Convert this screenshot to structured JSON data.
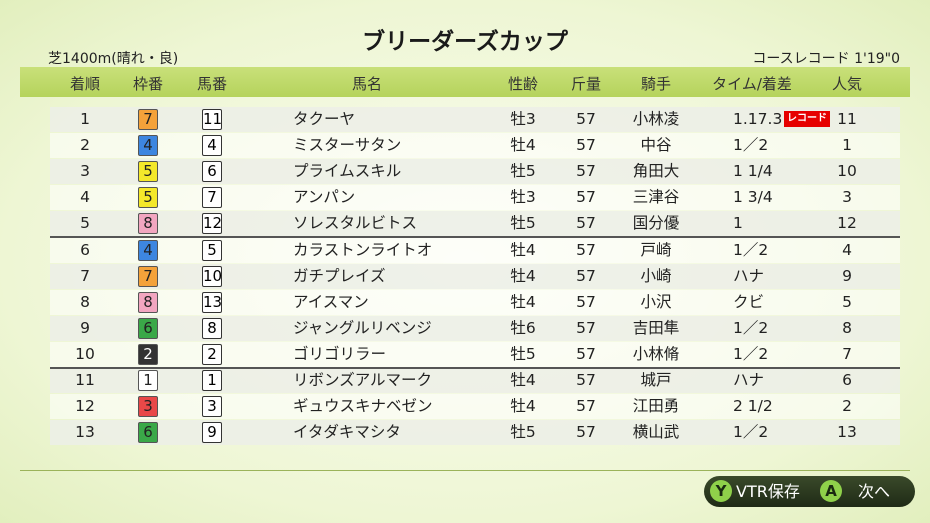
{
  "header": {
    "title": "ブリーダーズカップ",
    "course": "芝1400m(晴れ・良)",
    "record": "コースレコード 1'19\"0"
  },
  "table": {
    "columns": [
      "着順",
      "枠番",
      "馬番",
      "馬名",
      "性齢",
      "斤量",
      "騎手",
      "タイム/着差",
      "人気"
    ],
    "rows": [
      {
        "rank": "1",
        "frame": "7",
        "number": "11",
        "name": "タクーヤ",
        "sex_age": "牡3",
        "weight": "57",
        "jockey": "小林凌",
        "margin": "1.17.3",
        "badge": "レコード",
        "popularity": "11"
      },
      {
        "rank": "2",
        "frame": "4",
        "number": "4",
        "name": "ミスターサタン",
        "sex_age": "牡4",
        "weight": "57",
        "jockey": "中谷",
        "margin": "1／2",
        "popularity": "1"
      },
      {
        "rank": "3",
        "frame": "5",
        "number": "6",
        "name": "プライムスキル",
        "sex_age": "牡5",
        "weight": "57",
        "jockey": "角田大",
        "margin": "1 1/4",
        "popularity": "10"
      },
      {
        "rank": "4",
        "frame": "5",
        "number": "7",
        "name": "アンパン",
        "sex_age": "牡3",
        "weight": "57",
        "jockey": "三津谷",
        "margin": "1 3/4",
        "popularity": "3"
      },
      {
        "rank": "5",
        "frame": "8",
        "number": "12",
        "name": "ソレスタルビトス",
        "sex_age": "牡5",
        "weight": "57",
        "jockey": "国分優",
        "margin": "1",
        "popularity": "12"
      },
      {
        "rank": "6",
        "frame": "4",
        "number": "5",
        "name": "カラストンライトオ",
        "sex_age": "牡4",
        "weight": "57",
        "jockey": "戸崎",
        "margin": "1／2",
        "popularity": "4"
      },
      {
        "rank": "7",
        "frame": "7",
        "number": "10",
        "name": "ガチプレイズ",
        "sex_age": "牡4",
        "weight": "57",
        "jockey": "小崎",
        "margin": "ハナ",
        "popularity": "9"
      },
      {
        "rank": "8",
        "frame": "8",
        "number": "13",
        "name": "アイスマン",
        "sex_age": "牡4",
        "weight": "57",
        "jockey": "小沢",
        "margin": "クビ",
        "popularity": "5"
      },
      {
        "rank": "9",
        "frame": "6",
        "number": "8",
        "name": "ジャングルリベンジ",
        "sex_age": "牡6",
        "weight": "57",
        "jockey": "吉田隼",
        "margin": "1／2",
        "popularity": "8"
      },
      {
        "rank": "10",
        "frame": "2",
        "number": "2",
        "name": "ゴリゴリラー",
        "sex_age": "牡5",
        "weight": "57",
        "jockey": "小林脩",
        "margin": "1／2",
        "popularity": "7"
      },
      {
        "rank": "11",
        "frame": "1",
        "number": "1",
        "name": "リボンズアルマーク",
        "sex_age": "牡4",
        "weight": "57",
        "jockey": "城戸",
        "margin": "ハナ",
        "popularity": "6"
      },
      {
        "rank": "12",
        "frame": "3",
        "number": "3",
        "name": "ギュウスキナベゼン",
        "sex_age": "牡4",
        "weight": "57",
        "jockey": "江田勇",
        "margin": "2 1/2",
        "popularity": "2"
      },
      {
        "rank": "13",
        "frame": "6",
        "number": "9",
        "name": "イタダキマシタ",
        "sex_age": "牡5",
        "weight": "57",
        "jockey": "横山武",
        "margin": "1／2",
        "popularity": "13"
      }
    ]
  },
  "buttons": [
    {
      "key": "Y",
      "label": "VTR保存"
    },
    {
      "key": "A",
      "label": "次へ"
    }
  ]
}
